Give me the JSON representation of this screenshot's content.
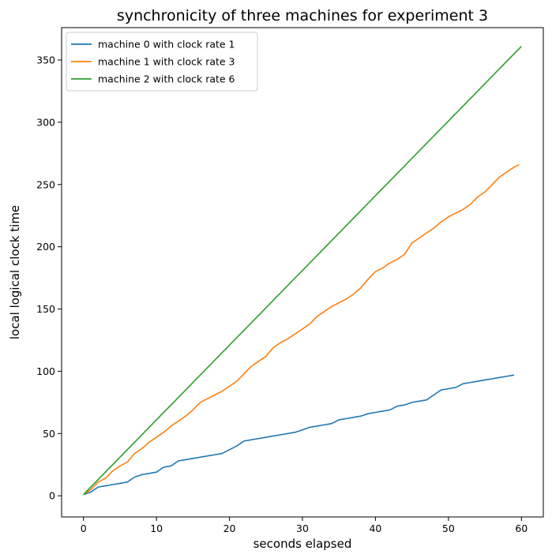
{
  "chart_data": {
    "type": "line",
    "title": "synchronicity of three machines for experiment 3",
    "xlabel": "seconds elapsed",
    "ylabel": "local logical clock time",
    "xlim": [
      -3,
      63
    ],
    "ylim": [
      -17,
      376
    ],
    "xticks": [
      0,
      10,
      20,
      30,
      40,
      50,
      60
    ],
    "yticks": [
      0,
      50,
      100,
      150,
      200,
      250,
      300,
      350
    ],
    "grid": false,
    "legend": "top-left",
    "series": [
      {
        "name": "machine 0 with clock rate 1",
        "color": "#1f77b4",
        "x": [
          0,
          1,
          2,
          3,
          4,
          5,
          6,
          7,
          8,
          9,
          10,
          11,
          12,
          13,
          14,
          15,
          16,
          17,
          18,
          19,
          20,
          21,
          22,
          23,
          24,
          25,
          26,
          27,
          28,
          29,
          30,
          31,
          32,
          33,
          34,
          35,
          36,
          37,
          38,
          39,
          40,
          41,
          42,
          43,
          44,
          45,
          46,
          47,
          48,
          49,
          50,
          51,
          52,
          53,
          54,
          55,
          56,
          57,
          58,
          59
        ],
        "y": [
          1,
          3,
          7,
          8,
          9,
          10,
          11,
          15,
          17,
          18,
          19,
          23,
          24,
          28,
          29,
          30,
          31,
          32,
          33,
          34,
          37,
          40,
          44,
          45,
          46,
          47,
          48,
          49,
          50,
          51,
          53,
          55,
          56,
          57,
          58,
          61,
          62,
          63,
          64,
          66,
          67,
          68,
          69,
          72,
          73,
          75,
          76,
          77,
          81,
          85,
          86,
          87,
          90,
          91,
          92,
          93,
          94,
          95,
          96,
          97
        ]
      },
      {
        "name": "machine 1 with clock rate 3",
        "color": "#ff7f0e",
        "x": [
          0,
          1,
          2,
          3,
          4,
          5,
          6,
          7,
          8,
          9,
          10,
          11,
          12,
          13,
          14,
          15,
          16,
          17,
          18,
          19,
          20,
          21,
          22,
          23,
          24,
          25,
          26,
          27,
          28,
          29,
          30,
          31,
          32,
          33,
          34,
          35,
          36,
          37,
          38,
          39,
          40,
          41,
          42,
          43,
          44,
          45,
          46,
          47,
          48,
          49,
          50,
          51,
          52,
          53,
          54,
          55,
          56,
          57,
          58,
          59,
          59.7
        ],
        "y": [
          1,
          5,
          11,
          14,
          20,
          24,
          27,
          34,
          38,
          43,
          47,
          51,
          56,
          60,
          64,
          69,
          75,
          78,
          81,
          84,
          88,
          92,
          98,
          104,
          108,
          112,
          119,
          123,
          126,
          130,
          134,
          138,
          144,
          148,
          152,
          155,
          158,
          162,
          167,
          174,
          180,
          183,
          187,
          190,
          194,
          203,
          207,
          211,
          215,
          220,
          224,
          227,
          230,
          234,
          240,
          244,
          250,
          256,
          260,
          264,
          266
        ]
      },
      {
        "name": "machine 2 with clock rate 6",
        "color": "#2ca02c",
        "x": [
          0,
          10,
          20,
          30,
          40,
          50,
          60
        ],
        "y": [
          1,
          61,
          121,
          181,
          241,
          301,
          361
        ]
      }
    ]
  }
}
